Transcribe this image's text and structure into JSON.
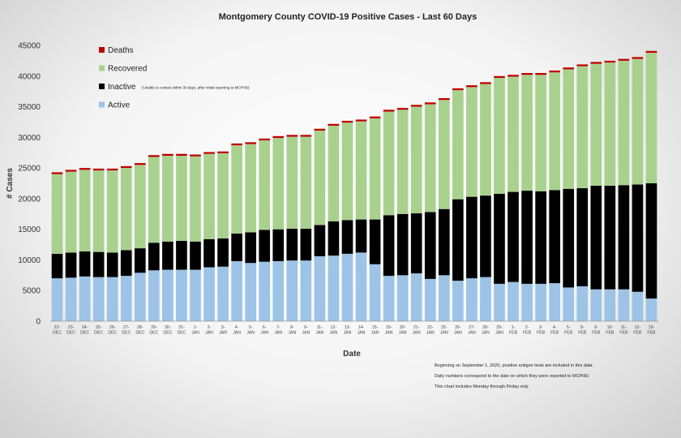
{
  "chart_data": {
    "type": "bar",
    "stacked": true,
    "title": "Montgomery County COVID-19 Positive Cases  - Last 60 Days",
    "xlabel": "Date",
    "ylabel": "# Cases",
    "ylim": [
      0,
      45000
    ],
    "yticks": [
      0,
      5000,
      10000,
      15000,
      20000,
      25000,
      30000,
      35000,
      40000,
      45000
    ],
    "grid": false,
    "legend_position": "top-left",
    "categories": [
      "22-DEC",
      "23-DEC",
      "24-DEC",
      "25-DEC",
      "26-DEC",
      "27-DEC",
      "28-DEC",
      "29-DEC",
      "30-DEC",
      "31-DEC",
      "1-JAN",
      "2-JAN",
      "3-JAN",
      "4-JAN",
      "5-JAN",
      "6-JAN",
      "7-JAN",
      "8-JAN",
      "9-JAN",
      "11-JAN",
      "12-JAN",
      "13-JAN",
      "14-JAN",
      "15-JAN",
      "19-JAN",
      "20-JAN",
      "21-JAN",
      "22-JAN",
      "25-JAN",
      "26-JAN",
      "27-JAN",
      "28-JAN",
      "29-JAN",
      "1-FEB",
      "2-FEB",
      "3-FEB",
      "4-FEB",
      "5-FEB",
      "8-FEB",
      "9-FEB",
      "10-FEB",
      "11-FEB",
      "12-FEB",
      "19-FEB"
    ],
    "series": [
      {
        "name": "Active",
        "color": "#9dc3e6",
        "values": [
          7000,
          7100,
          7300,
          7200,
          7200,
          7400,
          7900,
          8300,
          8400,
          8400,
          8400,
          8800,
          8900,
          9800,
          9500,
          9700,
          9800,
          9900,
          9900,
          10600,
          10700,
          11000,
          11200,
          9300,
          7400,
          7500,
          7800,
          6900,
          7500,
          6600,
          7000,
          7200,
          6100,
          6400,
          6100,
          6100,
          6200,
          5500,
          5700,
          5200,
          5200,
          5200,
          4800,
          3700
        ]
      },
      {
        "name": "Inactive",
        "color": "#000000",
        "values": [
          4000,
          4100,
          4100,
          4100,
          4000,
          4200,
          4000,
          4500,
          4600,
          4700,
          4600,
          4600,
          4600,
          4500,
          5000,
          5200,
          5200,
          5200,
          5200,
          5100,
          5600,
          5500,
          5400,
          7300,
          9900,
          10000,
          9800,
          10900,
          10800,
          13300,
          13300,
          13300,
          14700,
          14700,
          15200,
          15100,
          15200,
          16100,
          16000,
          16900,
          16900,
          17000,
          17500,
          18800
        ]
      },
      {
        "name": "Recovered",
        "color": "#a9d18e",
        "values": [
          13000,
          13200,
          13300,
          13300,
          13400,
          13400,
          13600,
          14000,
          14000,
          13900,
          13900,
          13900,
          13900,
          14400,
          14400,
          14600,
          14900,
          15000,
          15000,
          15400,
          15600,
          15900,
          16000,
          16500,
          16900,
          17000,
          17400,
          17600,
          17800,
          17800,
          17900,
          18200,
          18900,
          18800,
          18900,
          19000,
          19200,
          19500,
          19900,
          19900,
          20100,
          20300,
          20500,
          21300
        ]
      },
      {
        "name": "Deaths",
        "color": "#c00000",
        "values": [
          300,
          300,
          300,
          300,
          300,
          300,
          300,
          300,
          300,
          300,
          300,
          300,
          300,
          300,
          300,
          300,
          300,
          300,
          300,
          300,
          300,
          300,
          300,
          300,
          300,
          300,
          300,
          300,
          300,
          300,
          300,
          300,
          300,
          300,
          300,
          300,
          300,
          300,
          300,
          300,
          300,
          300,
          300,
          300
        ]
      }
    ],
    "legend": [
      {
        "name": "Deaths",
        "note": ""
      },
      {
        "name": "Recovered",
        "note": ""
      },
      {
        "name": "Inactive",
        "note": "(Unable to contact within 30 days, after initial reporting to MCPHD)"
      },
      {
        "name": "Active",
        "note": ""
      }
    ],
    "footnotes": [
      "Beginning on September 1, 2020, positive antigen tests are included in this data.",
      "Daily numbers correspond to the date on which they were reported to MCPHD.",
      "This chart includes Monday through Firday only."
    ]
  }
}
